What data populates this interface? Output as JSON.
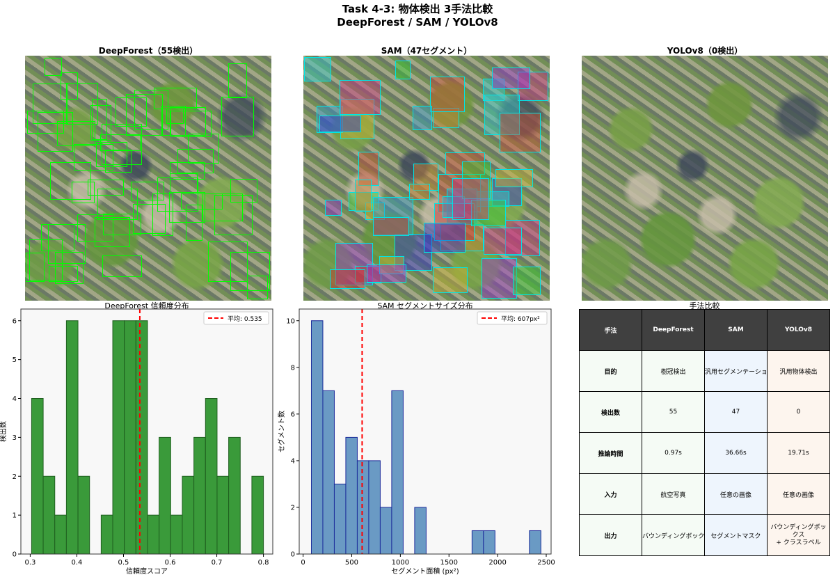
{
  "suptitle": {
    "line1": "Task 4-3: 物体検出 3手法比較",
    "line2": "DeepForest / SAM / YOLOv8"
  },
  "panels": {
    "deepforest_title": "DeepForest（55検出）",
    "sam_title": "SAM（47セグメント）",
    "yolo_title": "YOLOv8（0検出）",
    "deepforest_box_color": "#00ff00",
    "sam_box_color": "#00e5e5",
    "deepforest_count": 55,
    "sam_count": 47,
    "yolo_count": 0
  },
  "chart_data": [
    {
      "type": "bar",
      "title": "DeepForest 信頼度分布",
      "xlabel": "信頼度スコア",
      "ylabel": "検出数",
      "bin_start": 0.303,
      "bin_width": 0.02485,
      "values": [
        4,
        2,
        1,
        6,
        2,
        0,
        1,
        6,
        6,
        6,
        1,
        3,
        1,
        2,
        3,
        4,
        2,
        3,
        0,
        2
      ],
      "xlim": [
        0.28,
        0.82
      ],
      "ylim": [
        0,
        6.3
      ],
      "xticks": [
        "0.3",
        "0.4",
        "0.5",
        "0.6",
        "0.7",
        "0.8"
      ],
      "yticks": [
        "0",
        "1",
        "2",
        "3",
        "4",
        "5",
        "6"
      ],
      "mean": 0.535,
      "legend": "平均: 0.535",
      "legend_position": "top-right",
      "bar_color": "#3a9a3a",
      "edge_color": "#1f5f1f",
      "mean_color": "#ff0000"
    },
    {
      "type": "bar",
      "title": "SAM セグメントサイズ分布",
      "xlabel": "セグメント面積 (px²)",
      "ylabel": "セグメント数",
      "bin_start": 85,
      "bin_width": 118,
      "values": [
        10,
        7,
        3,
        5,
        4,
        4,
        2,
        7,
        0,
        2,
        0,
        0,
        0,
        0,
        1,
        1,
        0,
        0,
        0,
        1
      ],
      "xlim": [
        -40,
        2550
      ],
      "ylim": [
        0,
        10.5
      ],
      "xticks": [
        "0",
        "500",
        "1000",
        "1500",
        "2000",
        "2500"
      ],
      "yticks": [
        "0",
        "2",
        "4",
        "6",
        "8",
        "10"
      ],
      "mean": 607,
      "legend": "平均: 607px²",
      "legend_position": "top-right",
      "bar_color": "#6a9ac4",
      "edge_color": "#1a2a9a",
      "mean_color": "#ff0000"
    }
  ],
  "table": {
    "title": "手法比較",
    "header": [
      "手法",
      "DeepForest",
      "SAM",
      "YOLOv8"
    ],
    "rows": [
      [
        "目的",
        "樹冠検出",
        "汎用セグメンテーション",
        "汎用物体検出"
      ],
      [
        "検出数",
        "55",
        "47",
        "0"
      ],
      [
        "推論時間",
        "0.97s",
        "36.66s",
        "19.71s"
      ],
      [
        "入力",
        "航空写真",
        "任意の画像",
        "任意の画像"
      ],
      [
        "出力",
        "バウンディングボックス",
        "セグメントマスク",
        "バウンディングボックス\n+ クラスラベル"
      ]
    ]
  }
}
